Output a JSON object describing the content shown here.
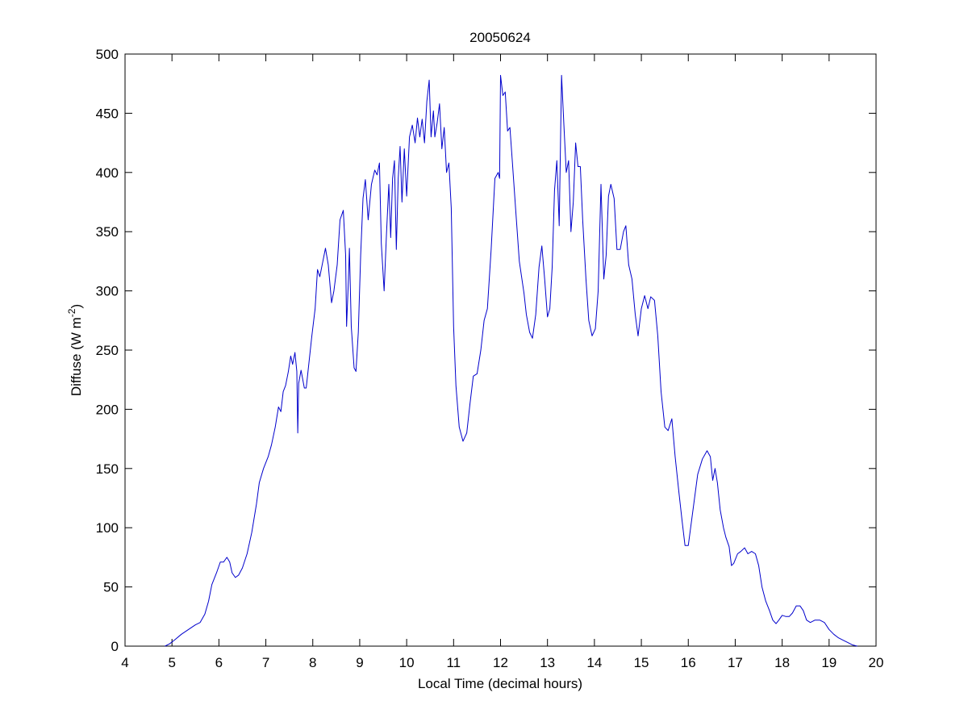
{
  "chart_data": {
    "type": "line",
    "title": "20050624",
    "xlabel": "Local Time (decimal hours)",
    "ylabel_main": "Diffuse (W m",
    "ylabel_sup": "-2",
    "ylabel_close": ")",
    "xlim": [
      4,
      20
    ],
    "ylim": [
      0,
      500
    ],
    "xticks": [
      4,
      5,
      6,
      7,
      8,
      9,
      10,
      11,
      12,
      13,
      14,
      15,
      16,
      17,
      18,
      19,
      20
    ],
    "yticks": [
      0,
      50,
      100,
      150,
      200,
      250,
      300,
      350,
      400,
      450,
      500
    ],
    "grid": false,
    "series": [
      {
        "color": "#0000cc",
        "points": [
          [
            4.85,
            0
          ],
          [
            4.95,
            2
          ],
          [
            5.05,
            5
          ],
          [
            5.2,
            10
          ],
          [
            5.35,
            14
          ],
          [
            5.5,
            18
          ],
          [
            5.6,
            20
          ],
          [
            5.7,
            27
          ],
          [
            5.78,
            38
          ],
          [
            5.85,
            52
          ],
          [
            5.95,
            62
          ],
          [
            6.03,
            71
          ],
          [
            6.1,
            71
          ],
          [
            6.17,
            75
          ],
          [
            6.23,
            71
          ],
          [
            6.28,
            62
          ],
          [
            6.35,
            58
          ],
          [
            6.42,
            60
          ],
          [
            6.5,
            66
          ],
          [
            6.6,
            78
          ],
          [
            6.7,
            96
          ],
          [
            6.8,
            120
          ],
          [
            6.86,
            138
          ],
          [
            6.95,
            150
          ],
          [
            7.05,
            160
          ],
          [
            7.12,
            170
          ],
          [
            7.2,
            185
          ],
          [
            7.27,
            202
          ],
          [
            7.32,
            198
          ],
          [
            7.37,
            215
          ],
          [
            7.42,
            220
          ],
          [
            7.48,
            232
          ],
          [
            7.53,
            245
          ],
          [
            7.57,
            238
          ],
          [
            7.62,
            248
          ],
          [
            7.66,
            232
          ],
          [
            7.68,
            180
          ],
          [
            7.7,
            222
          ],
          [
            7.75,
            233
          ],
          [
            7.82,
            218
          ],
          [
            7.86,
            218
          ],
          [
            7.92,
            240
          ],
          [
            7.98,
            262
          ],
          [
            8.05,
            285
          ],
          [
            8.1,
            318
          ],
          [
            8.15,
            312
          ],
          [
            8.2,
            322
          ],
          [
            8.27,
            336
          ],
          [
            8.33,
            322
          ],
          [
            8.4,
            290
          ],
          [
            8.45,
            300
          ],
          [
            8.52,
            322
          ],
          [
            8.58,
            360
          ],
          [
            8.65,
            368
          ],
          [
            8.7,
            330
          ],
          [
            8.72,
            270
          ],
          [
            8.76,
            310
          ],
          [
            8.78,
            336
          ],
          [
            8.82,
            270
          ],
          [
            8.88,
            235
          ],
          [
            8.92,
            232
          ],
          [
            8.97,
            265
          ],
          [
            9.02,
            330
          ],
          [
            9.07,
            378
          ],
          [
            9.12,
            394
          ],
          [
            9.18,
            360
          ],
          [
            9.25,
            390
          ],
          [
            9.32,
            402
          ],
          [
            9.37,
            398
          ],
          [
            9.42,
            408
          ],
          [
            9.46,
            340
          ],
          [
            9.52,
            300
          ],
          [
            9.57,
            348
          ],
          [
            9.62,
            390
          ],
          [
            9.66,
            345
          ],
          [
            9.7,
            395
          ],
          [
            9.74,
            410
          ],
          [
            9.78,
            335
          ],
          [
            9.82,
            395
          ],
          [
            9.86,
            422
          ],
          [
            9.9,
            375
          ],
          [
            9.95,
            420
          ],
          [
            10.0,
            380
          ],
          [
            10.06,
            430
          ],
          [
            10.12,
            440
          ],
          [
            10.18,
            425
          ],
          [
            10.23,
            446
          ],
          [
            10.28,
            430
          ],
          [
            10.33,
            445
          ],
          [
            10.38,
            425
          ],
          [
            10.43,
            460
          ],
          [
            10.48,
            478
          ],
          [
            10.52,
            430
          ],
          [
            10.57,
            452
          ],
          [
            10.6,
            430
          ],
          [
            10.65,
            442
          ],
          [
            10.7,
            458
          ],
          [
            10.75,
            420
          ],
          [
            10.8,
            438
          ],
          [
            10.85,
            400
          ],
          [
            10.9,
            408
          ],
          [
            10.95,
            370
          ],
          [
            11.0,
            270
          ],
          [
            11.05,
            220
          ],
          [
            11.12,
            185
          ],
          [
            11.2,
            173
          ],
          [
            11.28,
            180
          ],
          [
            11.35,
            205
          ],
          [
            11.42,
            228
          ],
          [
            11.5,
            230
          ],
          [
            11.58,
            250
          ],
          [
            11.65,
            275
          ],
          [
            11.72,
            285
          ],
          [
            11.8,
            335
          ],
          [
            11.88,
            395
          ],
          [
            11.95,
            400
          ],
          [
            11.98,
            395
          ],
          [
            12.0,
            482
          ],
          [
            12.05,
            465
          ],
          [
            12.1,
            468
          ],
          [
            12.15,
            435
          ],
          [
            12.2,
            438
          ],
          [
            12.25,
            410
          ],
          [
            12.32,
            370
          ],
          [
            12.4,
            325
          ],
          [
            12.5,
            298
          ],
          [
            12.55,
            280
          ],
          [
            12.62,
            265
          ],
          [
            12.68,
            260
          ],
          [
            12.75,
            280
          ],
          [
            12.82,
            320
          ],
          [
            12.88,
            338
          ],
          [
            12.94,
            310
          ],
          [
            13.0,
            278
          ],
          [
            13.05,
            285
          ],
          [
            13.1,
            320
          ],
          [
            13.15,
            385
          ],
          [
            13.2,
            410
          ],
          [
            13.25,
            355
          ],
          [
            13.3,
            482
          ],
          [
            13.35,
            440
          ],
          [
            13.4,
            400
          ],
          [
            13.45,
            410
          ],
          [
            13.5,
            350
          ],
          [
            13.55,
            375
          ],
          [
            13.6,
            425
          ],
          [
            13.65,
            405
          ],
          [
            13.7,
            405
          ],
          [
            13.75,
            360
          ],
          [
            13.82,
            310
          ],
          [
            13.88,
            275
          ],
          [
            13.95,
            262
          ],
          [
            14.02,
            268
          ],
          [
            14.08,
            300
          ],
          [
            14.14,
            390
          ],
          [
            14.2,
            310
          ],
          [
            14.25,
            330
          ],
          [
            14.3,
            380
          ],
          [
            14.35,
            390
          ],
          [
            14.42,
            378
          ],
          [
            14.48,
            335
          ],
          [
            14.55,
            335
          ],
          [
            14.62,
            350
          ],
          [
            14.67,
            355
          ],
          [
            14.73,
            322
          ],
          [
            14.8,
            310
          ],
          [
            14.87,
            280
          ],
          [
            14.93,
            262
          ],
          [
            15.0,
            285
          ],
          [
            15.07,
            296
          ],
          [
            15.14,
            285
          ],
          [
            15.2,
            295
          ],
          [
            15.28,
            292
          ],
          [
            15.35,
            262
          ],
          [
            15.42,
            215
          ],
          [
            15.5,
            185
          ],
          [
            15.57,
            182
          ],
          [
            15.65,
            192
          ],
          [
            15.72,
            160
          ],
          [
            15.8,
            130
          ],
          [
            15.87,
            105
          ],
          [
            15.93,
            85
          ],
          [
            16.0,
            85
          ],
          [
            16.1,
            115
          ],
          [
            16.2,
            145
          ],
          [
            16.3,
            158
          ],
          [
            16.4,
            165
          ],
          [
            16.47,
            160
          ],
          [
            16.52,
            140
          ],
          [
            16.57,
            150
          ],
          [
            16.62,
            138
          ],
          [
            16.68,
            115
          ],
          [
            16.75,
            100
          ],
          [
            16.8,
            92
          ],
          [
            16.87,
            84
          ],
          [
            16.92,
            68
          ],
          [
            16.97,
            70
          ],
          [
            17.05,
            78
          ],
          [
            17.12,
            80
          ],
          [
            17.2,
            83
          ],
          [
            17.27,
            78
          ],
          [
            17.35,
            80
          ],
          [
            17.43,
            78
          ],
          [
            17.5,
            68
          ],
          [
            17.57,
            50
          ],
          [
            17.65,
            38
          ],
          [
            17.73,
            30
          ],
          [
            17.8,
            22
          ],
          [
            17.87,
            19
          ],
          [
            17.93,
            22
          ],
          [
            18.0,
            26
          ],
          [
            18.08,
            25
          ],
          [
            18.15,
            25
          ],
          [
            18.22,
            28
          ],
          [
            18.3,
            34
          ],
          [
            18.38,
            34
          ],
          [
            18.45,
            30
          ],
          [
            18.52,
            22
          ],
          [
            18.6,
            20
          ],
          [
            18.7,
            22
          ],
          [
            18.8,
            22
          ],
          [
            18.9,
            20
          ],
          [
            19.0,
            14
          ],
          [
            19.1,
            10
          ],
          [
            19.2,
            7
          ],
          [
            19.3,
            5
          ],
          [
            19.4,
            3
          ],
          [
            19.5,
            1
          ],
          [
            19.6,
            0
          ]
        ]
      }
    ]
  }
}
